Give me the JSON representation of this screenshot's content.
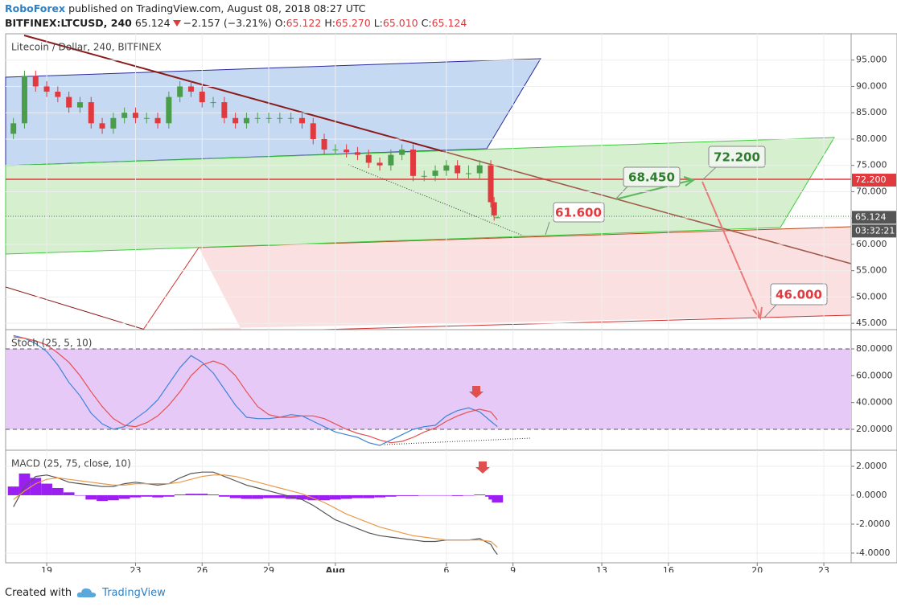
{
  "header": {
    "publisher": "RoboForex",
    "published": "published on TradingView.com, August 08, 2018 08:27 UTC",
    "symbol": "BITFINEX:LTCUSD, 240",
    "last": "65.124",
    "change": "−2.157 (−3.21%)",
    "ohlc": [
      {
        "key": "O:",
        "value": "65.122"
      },
      {
        "key": "H:",
        "value": "65.270"
      },
      {
        "key": "L:",
        "value": "65.010"
      },
      {
        "key": "C:",
        "value": "65.124"
      }
    ]
  },
  "chart_data": [
    {
      "type": "candlestick",
      "title": "Litecoin / Dollar, 240, BITFINEX",
      "x": [
        -1.5,
        -1,
        -0.5,
        0,
        0.5,
        1,
        1.5,
        2,
        2.5,
        3,
        3.5,
        4,
        4.5,
        5,
        5.5,
        6,
        6.5,
        7,
        7.5,
        8,
        8.5,
        9,
        9.5,
        10,
        10.5,
        11,
        11.5,
        12,
        12.5,
        13,
        13.5,
        14,
        14.5,
        15,
        15.5,
        16,
        16.5,
        17,
        17.5,
        18,
        18.5,
        19,
        19.5,
        20,
        20.15,
        20.3
      ],
      "open": [
        81,
        83,
        92,
        90,
        89,
        88,
        86,
        87,
        83,
        82,
        84,
        85,
        84,
        84,
        83,
        88,
        90,
        89,
        87,
        87,
        84,
        83,
        84,
        84,
        84,
        84,
        84,
        83,
        80,
        78,
        78,
        77.5,
        77,
        75.5,
        75,
        77,
        78,
        73,
        73,
        74,
        75,
        73.5,
        73.5,
        75,
        68,
        65.122
      ],
      "high": [
        84,
        93,
        93,
        91,
        90,
        89,
        88,
        88,
        84,
        85,
        86,
        86,
        85,
        85,
        89,
        91,
        91,
        90,
        88,
        88,
        85,
        85,
        85,
        85,
        85,
        85,
        85,
        84,
        81,
        79,
        79,
        78.5,
        78,
        76.5,
        78,
        79,
        79,
        74,
        75,
        76,
        76,
        75,
        76,
        76,
        69,
        65.27
      ],
      "low": [
        80,
        82,
        89,
        88,
        87,
        85,
        85,
        82,
        81,
        81,
        83,
        83,
        83,
        82,
        82,
        87,
        88,
        86,
        86,
        83,
        82,
        82,
        83,
        83,
        83,
        83,
        82,
        79,
        77,
        77,
        76.5,
        76,
        74.5,
        74,
        74,
        76,
        72,
        72,
        72,
        73,
        72.5,
        72.5,
        72.5,
        67,
        64.5,
        65.01
      ],
      "close": [
        83,
        92,
        90,
        89,
        88,
        86,
        87,
        83,
        82,
        84,
        85,
        84,
        84,
        83,
        88,
        90,
        89,
        87,
        87,
        84,
        83,
        84,
        84,
        84,
        84,
        84,
        83,
        80,
        78,
        78,
        77.5,
        77,
        75.5,
        75,
        77,
        78,
        73,
        73,
        74,
        75,
        73.5,
        73.5,
        75,
        68,
        65.5,
        65.124
      ],
      "up_color": "#4a9e4a",
      "down_color": "#e0393e",
      "xlim": [
        -1.85,
        36.23
      ],
      "xticks": [
        {
          "value": 0,
          "label": "19"
        },
        {
          "value": 4,
          "label": "23"
        },
        {
          "value": 7,
          "label": "26"
        },
        {
          "value": 10,
          "label": "29"
        },
        {
          "value": 13,
          "label": "Aug"
        },
        {
          "value": 18,
          "label": "6"
        },
        {
          "value": 21,
          "label": "9"
        },
        {
          "value": 25,
          "label": "13"
        },
        {
          "value": 28,
          "label": "16"
        },
        {
          "value": 32,
          "label": "20"
        },
        {
          "value": 35,
          "label": "23"
        }
      ],
      "ylim": [
        43.8,
        100
      ],
      "yticks": [
        {
          "value": 45,
          "label": "45.000"
        },
        {
          "value": 50,
          "label": "50.000"
        },
        {
          "value": 55,
          "label": "55.000"
        },
        {
          "value": 60,
          "label": "60.000"
        },
        {
          "value": 65,
          "label": "65.000"
        },
        {
          "value": 70,
          "label": "70.000"
        },
        {
          "value": 75,
          "label": "75.000"
        },
        {
          "value": 80,
          "label": "80.000"
        },
        {
          "value": 85,
          "label": "85.000"
        },
        {
          "value": 90,
          "label": "90.000"
        },
        {
          "value": 95,
          "label": "95.000"
        }
      ],
      "marker_labels": [
        {
          "value": 72.2,
          "label": "72.200",
          "color": "#e0393e"
        },
        {
          "value": 65.124,
          "label": "65.124",
          "color": "#555555"
        }
      ],
      "countdown": "03:32:21",
      "annotations": [
        "61.600",
        "68.450",
        "72.200",
        "46.000"
      ],
      "grid": true
    },
    {
      "type": "line",
      "title": "Stoch (25, 5, 10)",
      "x": [
        -1.5,
        -1,
        -0.5,
        0,
        0.5,
        1,
        1.5,
        2,
        2.5,
        3,
        3.5,
        4,
        4.5,
        5,
        5.5,
        6,
        6.5,
        7,
        7.5,
        8,
        8.5,
        9,
        9.5,
        10,
        10.5,
        11,
        11.5,
        12,
        12.5,
        13,
        13.5,
        14,
        14.5,
        15,
        15.5,
        16,
        16.5,
        17,
        17.5,
        18,
        18.5,
        19,
        19.5,
        20,
        20.15,
        20.3
      ],
      "series": [
        {
          "color": "#3d85d8",
          "values": [
            90,
            88,
            84,
            78,
            68,
            55,
            45,
            32,
            24,
            20,
            22,
            28,
            34,
            42,
            54,
            66,
            75,
            70,
            62,
            50,
            38,
            29,
            28,
            28,
            29,
            31,
            30,
            26,
            22,
            18,
            16,
            14,
            10,
            8,
            12,
            16,
            20,
            22,
            23,
            30,
            34,
            36,
            33,
            26,
            24,
            22
          ]
        },
        {
          "color": "#e8504f",
          "values": [
            89,
            88,
            86,
            83,
            77,
            70,
            60,
            48,
            37,
            28,
            23,
            22,
            25,
            30,
            38,
            48,
            60,
            68,
            71,
            68,
            60,
            48,
            37,
            31,
            29,
            29,
            30,
            30,
            28,
            24,
            20,
            17,
            15,
            12,
            10,
            11,
            14,
            18,
            21,
            26,
            30,
            33,
            35,
            33,
            30,
            27
          ]
        }
      ],
      "band": [
        20,
        80
      ],
      "band_color": "#e6c9f7",
      "ylim": [
        4.4,
        94.4
      ],
      "yticks": [
        {
          "value": 20,
          "label": "20.0000"
        },
        {
          "value": 40,
          "label": "40.0000"
        },
        {
          "value": 60,
          "label": "60.0000"
        },
        {
          "value": 80,
          "label": "80.0000"
        }
      ],
      "grid": true
    },
    {
      "type": "macd",
      "title": "MACD (25, 75, close, 10)",
      "x": [
        -1.5,
        -1,
        -0.5,
        0,
        0.5,
        1,
        1.5,
        2,
        2.5,
        3,
        3.5,
        4,
        4.5,
        5,
        5.5,
        6,
        6.5,
        7,
        7.5,
        8,
        8.5,
        9,
        9.5,
        10,
        10.5,
        11,
        11.5,
        12,
        12.5,
        13,
        13.5,
        14,
        14.5,
        15,
        15.5,
        16,
        16.5,
        17,
        17.5,
        18,
        18.5,
        19,
        19.5,
        20,
        20.15,
        20.3
      ],
      "histogram": {
        "color": "#9b1ff0",
        "values": [
          0.6,
          1.5,
          1.2,
          0.8,
          0.5,
          0.2,
          0.0,
          -0.3,
          -0.4,
          -0.35,
          -0.25,
          -0.15,
          -0.1,
          -0.15,
          -0.1,
          0.05,
          0.1,
          0.1,
          0.05,
          -0.1,
          -0.2,
          -0.25,
          -0.25,
          -0.2,
          -0.2,
          -0.25,
          -0.3,
          -0.35,
          -0.35,
          -0.3,
          -0.25,
          -0.2,
          -0.2,
          -0.15,
          -0.1,
          -0.05,
          -0.05,
          0.0,
          0.0,
          0.0,
          -0.05,
          0.0,
          0.05,
          -0.1,
          -0.3,
          -0.5
        ]
      },
      "series": [
        {
          "color": "#555555",
          "values": [
            -0.8,
            0.6,
            1.3,
            1.4,
            1.2,
            0.9,
            0.8,
            0.7,
            0.6,
            0.6,
            0.8,
            0.9,
            0.8,
            0.7,
            0.8,
            1.2,
            1.5,
            1.6,
            1.6,
            1.3,
            1.0,
            0.7,
            0.5,
            0.3,
            0.1,
            -0.1,
            -0.3,
            -0.7,
            -1.2,
            -1.7,
            -2.0,
            -2.3,
            -2.6,
            -2.8,
            -2.9,
            -3.0,
            -3.1,
            -3.2,
            -3.2,
            -3.1,
            -3.1,
            -3.1,
            -3.0,
            -3.4,
            -3.8,
            -4.1
          ]
        },
        {
          "color": "#e89a4a",
          "values": [
            -0.3,
            0.3,
            0.8,
            1.1,
            1.2,
            1.1,
            1.0,
            0.9,
            0.8,
            0.7,
            0.7,
            0.8,
            0.8,
            0.8,
            0.8,
            0.9,
            1.1,
            1.3,
            1.4,
            1.4,
            1.3,
            1.1,
            0.9,
            0.7,
            0.5,
            0.3,
            0.1,
            -0.2,
            -0.5,
            -0.9,
            -1.3,
            -1.6,
            -1.9,
            -2.2,
            -2.4,
            -2.6,
            -2.8,
            -2.9,
            -3.0,
            -3.1,
            -3.1,
            -3.1,
            -3.1,
            -3.2,
            -3.4,
            -3.6
          ]
        }
      ],
      "ylim": [
        -4.67,
        3.11
      ],
      "yticks": [
        {
          "value": -4,
          "label": "-4.0000"
        },
        {
          "value": -2,
          "label": "-2.0000"
        },
        {
          "value": 0,
          "label": "0.0000"
        },
        {
          "value": 2,
          "label": "2.0000"
        }
      ],
      "grid": true
    }
  ],
  "footer": {
    "created": "Created with",
    "brand": "TradingView"
  }
}
